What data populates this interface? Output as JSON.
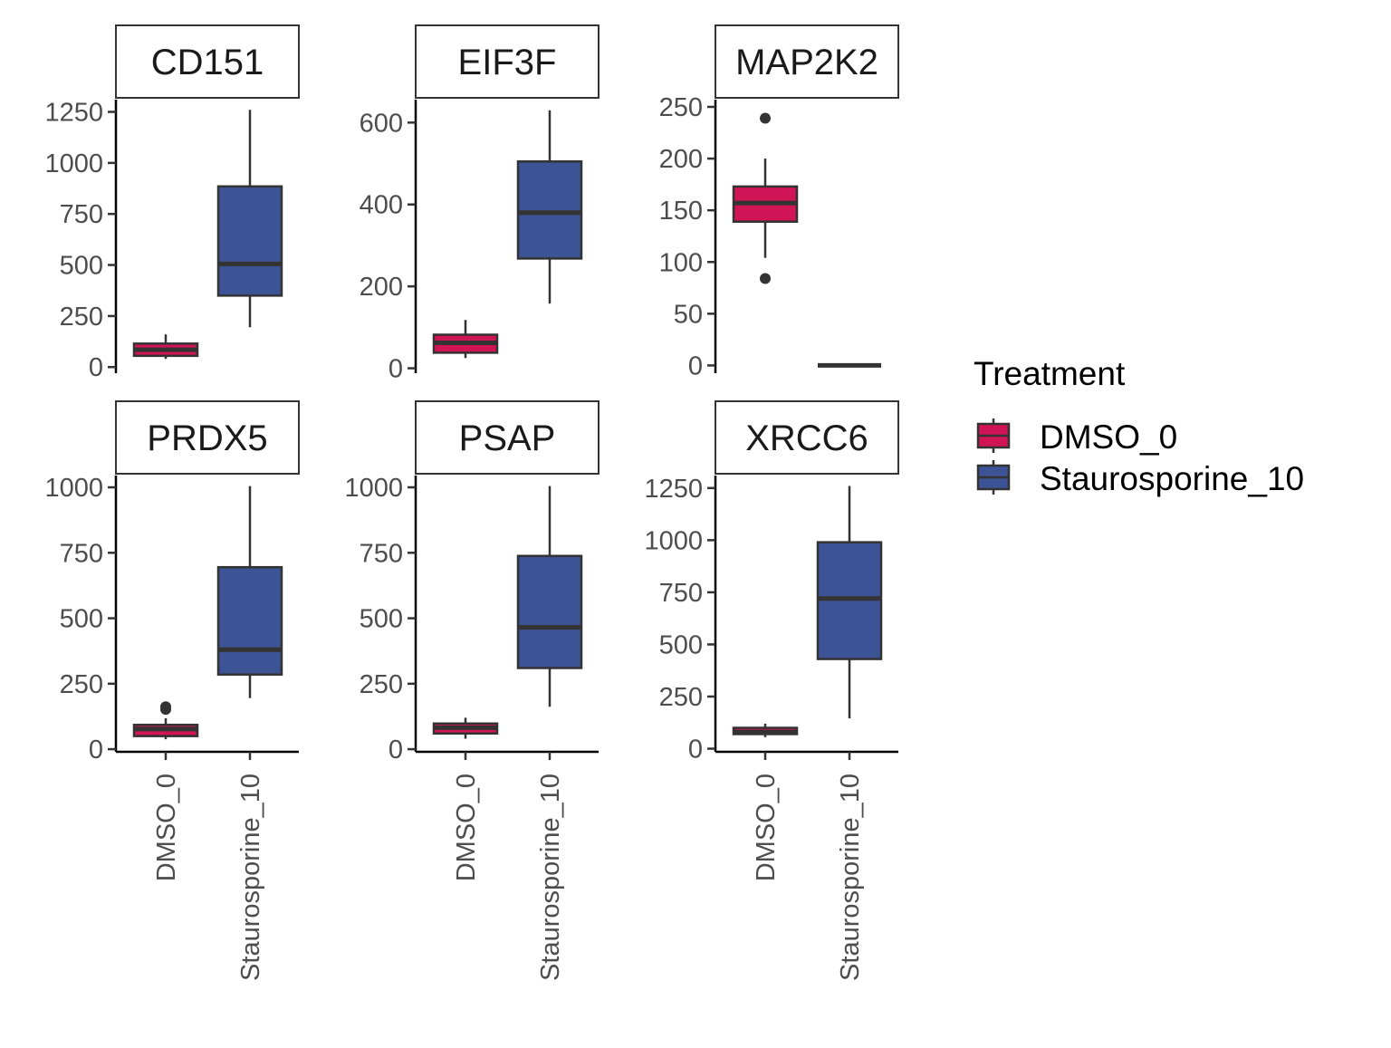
{
  "colors": {
    "DMSO_0": "#D01455",
    "Staurosporine_10": "#3C5396",
    "outline": "#333333",
    "axis": "#000000",
    "tick_text": "#4d4d4d"
  },
  "legend": {
    "title": "Treatment",
    "items": [
      {
        "key": "DMSO_0",
        "label": "DMSO_0"
      },
      {
        "key": "Staurosporine_10",
        "label": "Staurosporine_10"
      }
    ]
  },
  "chart_data": {
    "type": "boxplot",
    "facet_layout": "3 columns x 2 rows",
    "x_categories": [
      "DMSO_0",
      "Staurosporine_10"
    ],
    "legend_position": "right",
    "grid": false,
    "facets": [
      {
        "title": "CD151",
        "ylim": [
          -30,
          1310
        ],
        "yticks": [
          0,
          250,
          500,
          750,
          1000,
          1250
        ],
        "boxes": [
          {
            "group": "DMSO_0",
            "lower_whisker": 40,
            "q1": 55,
            "median": 85,
            "q3": 115,
            "upper_whisker": 160,
            "outliers": []
          },
          {
            "group": "Staurosporine_10",
            "lower_whisker": 195,
            "q1": 350,
            "median": 505,
            "q3": 885,
            "upper_whisker": 1260,
            "outliers": []
          }
        ]
      },
      {
        "title": "EIF3F",
        "ylim": [
          -12,
          656
        ],
        "yticks": [
          0,
          200,
          400,
          600
        ],
        "boxes": [
          {
            "group": "DMSO_0",
            "lower_whisker": 25,
            "q1": 38,
            "median": 62,
            "q3": 82,
            "upper_whisker": 118,
            "outliers": []
          },
          {
            "group": "Staurosporine_10",
            "lower_whisker": 158,
            "q1": 268,
            "median": 380,
            "q3": 505,
            "upper_whisker": 630,
            "outliers": []
          }
        ]
      },
      {
        "title": "MAP2K2",
        "ylim": [
          -7.5,
          257
        ],
        "yticks": [
          0,
          50,
          100,
          150,
          200,
          250
        ],
        "boxes": [
          {
            "group": "DMSO_0",
            "lower_whisker": 104,
            "q1": 139,
            "median": 157,
            "q3": 173,
            "upper_whisker": 200,
            "outliers": [
              239,
              84
            ]
          },
          {
            "group": "Staurosporine_10",
            "lower_whisker": 0,
            "q1": 0,
            "median": 0,
            "q3": 0,
            "upper_whisker": 0,
            "outliers": []
          }
        ]
      },
      {
        "title": "PRDX5",
        "ylim": [
          -10,
          1045
        ],
        "yticks": [
          0,
          250,
          500,
          750,
          1000
        ],
        "boxes": [
          {
            "group": "DMSO_0",
            "lower_whisker": 38,
            "q1": 50,
            "median": 77,
            "q3": 93,
            "upper_whisker": 118,
            "outliers": [
              152,
              162
            ]
          },
          {
            "group": "Staurosporine_10",
            "lower_whisker": 195,
            "q1": 285,
            "median": 380,
            "q3": 695,
            "upper_whisker": 1005,
            "outliers": []
          }
        ]
      },
      {
        "title": "PSAP",
        "ylim": [
          -10,
          1045
        ],
        "yticks": [
          0,
          250,
          500,
          750,
          1000
        ],
        "boxes": [
          {
            "group": "DMSO_0",
            "lower_whisker": 40,
            "q1": 60,
            "median": 82,
            "q3": 98,
            "upper_whisker": 120,
            "outliers": []
          },
          {
            "group": "Staurosporine_10",
            "lower_whisker": 162,
            "q1": 310,
            "median": 465,
            "q3": 738,
            "upper_whisker": 1005,
            "outliers": []
          }
        ]
      },
      {
        "title": "XRCC6",
        "ylim": [
          -15,
          1310
        ],
        "yticks": [
          0,
          250,
          500,
          750,
          1000,
          1250
        ],
        "boxes": [
          {
            "group": "DMSO_0",
            "lower_whisker": 55,
            "q1": 70,
            "median": 80,
            "q3": 100,
            "upper_whisker": 120,
            "outliers": []
          },
          {
            "group": "Staurosporine_10",
            "lower_whisker": 145,
            "q1": 430,
            "median": 720,
            "q3": 990,
            "upper_whisker": 1260,
            "outliers": []
          }
        ]
      }
    ]
  }
}
